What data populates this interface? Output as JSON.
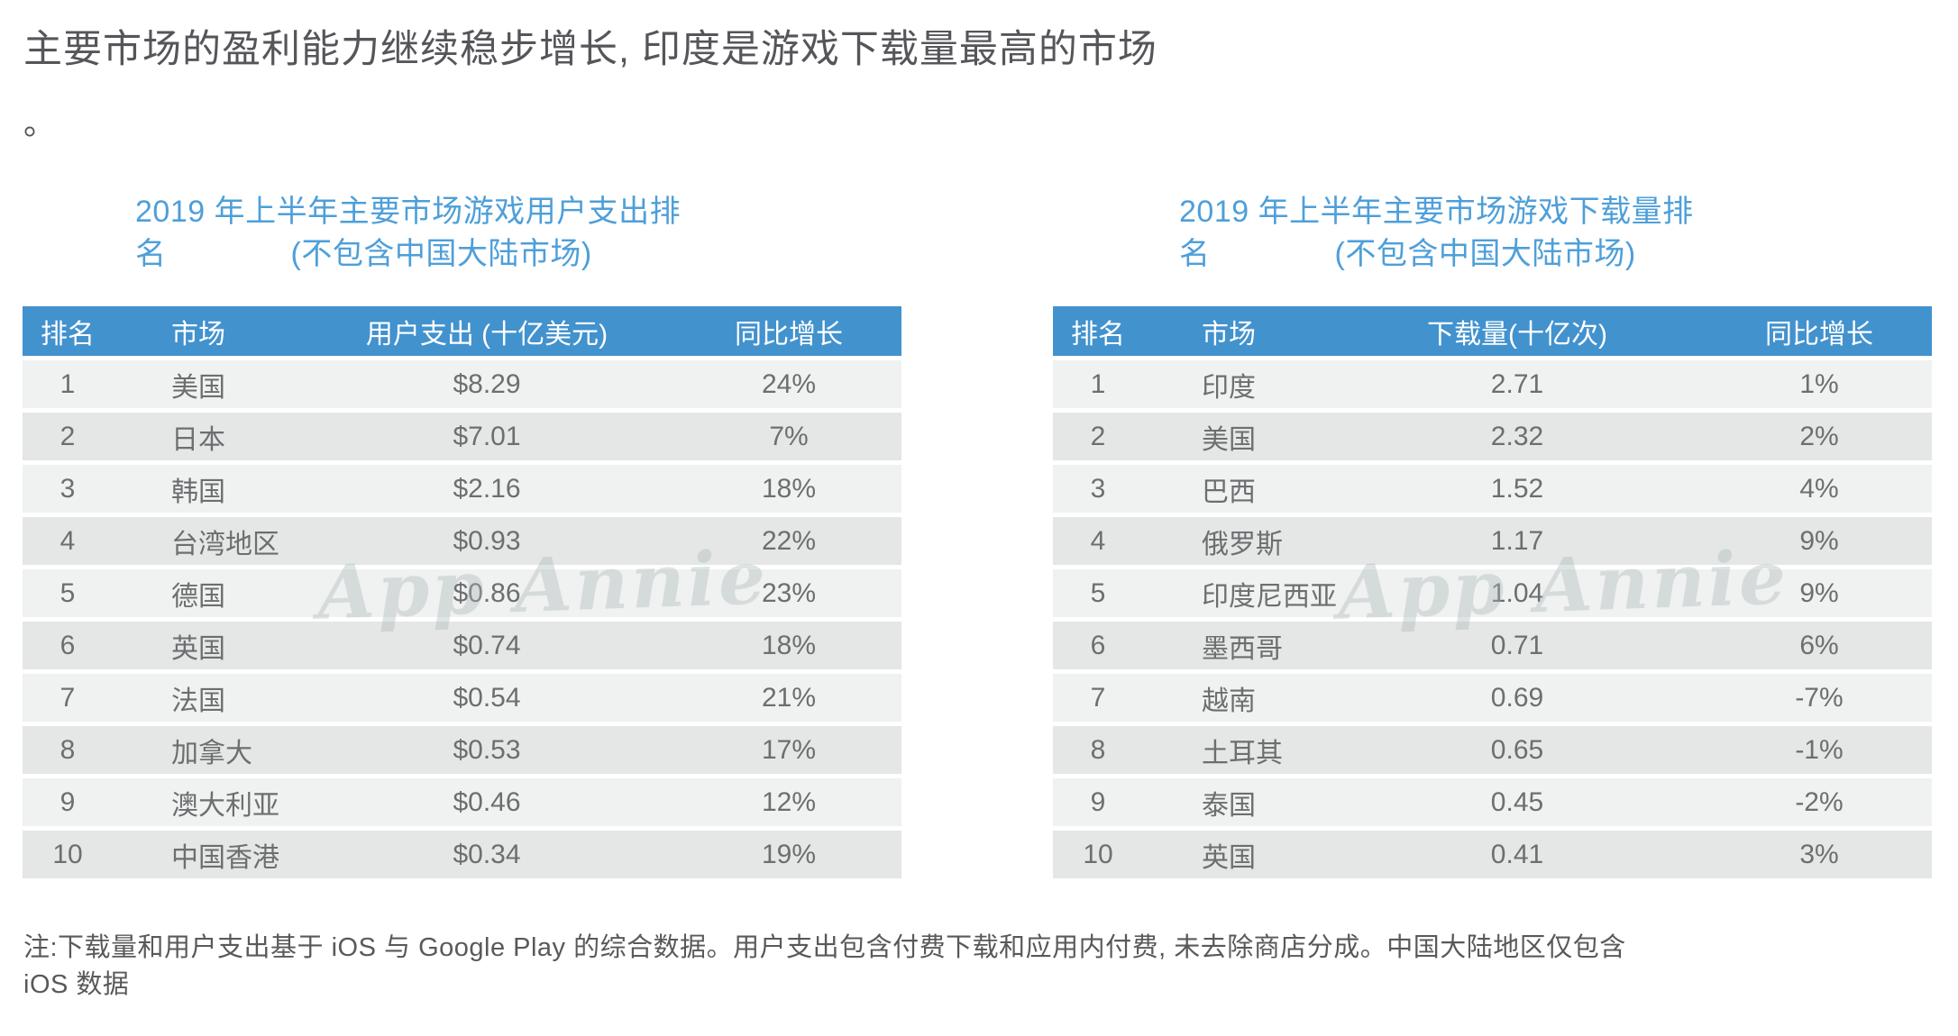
{
  "slide": {
    "title": "主要市场的盈利能力继续稳步增长, 印度是游戏下载量最高的市场",
    "title_overflow": "。",
    "watermark": "App Annie",
    "footnote": "注:下载量和用户支出基于 iOS 与 Google Play 的综合数据。用户支出包含付费下载和应用内付费, 未去除商店分成。中国大陆地区仅包含 iOS 数据"
  },
  "colors": {
    "header_blue": "#4292ce",
    "panel_title_blue": "#4e9fd9",
    "row_light": "#f0f1f1",
    "row_dark": "#e5e6e6",
    "cell_text": "#6d6e70",
    "title_text": "#55565a"
  },
  "panels": [
    {
      "title_line1": "2019 年上半年主要市场游戏用户支出排",
      "title_line2": "名　　　　(不包含中国大陆市场)"
    },
    {
      "title_line1": "2019 年上半年主要市场游戏下载量排",
      "title_line2": "名　　　　(不包含中国大陆市场)"
    }
  ],
  "chart_data": [
    {
      "type": "table",
      "title": "2019 年上半年主要市场游戏用户支出排名 (不包含中国大陆市场)",
      "columns": [
        "排名",
        "市场",
        "用户支出 (十亿美元)",
        "同比增长"
      ],
      "rows": [
        [
          "1",
          "美国",
          "$8.29",
          "24%"
        ],
        [
          "2",
          "日本",
          "$7.01",
          "7%"
        ],
        [
          "3",
          "韩国",
          "$2.16",
          "18%"
        ],
        [
          "4",
          "台湾地区",
          "$0.93",
          "22%"
        ],
        [
          "5",
          "德国",
          "$0.86",
          "23%"
        ],
        [
          "6",
          "英国",
          "$0.74",
          "18%"
        ],
        [
          "7",
          "法国",
          "$0.54",
          "21%"
        ],
        [
          "8",
          "加拿大",
          "$0.53",
          "17%"
        ],
        [
          "9",
          "澳大利亚",
          "$0.46",
          "12%"
        ],
        [
          "10",
          "中国香港",
          "$0.34",
          "19%"
        ]
      ]
    },
    {
      "type": "table",
      "title": "2019 年上半年主要市场游戏下载量排名 (不包含中国大陆市场)",
      "columns": [
        "排名",
        "市场",
        "下载量(十亿次)",
        "同比增长"
      ],
      "rows": [
        [
          "1",
          "印度",
          "2.71",
          "1%"
        ],
        [
          "2",
          "美国",
          "2.32",
          "2%"
        ],
        [
          "3",
          "巴西",
          "1.52",
          "4%"
        ],
        [
          "4",
          "俄罗斯",
          "1.17",
          "9%"
        ],
        [
          "5",
          "印度尼西亚",
          "1.04",
          "9%"
        ],
        [
          "6",
          "墨西哥",
          "0.71",
          "6%"
        ],
        [
          "7",
          "越南",
          "0.69",
          "-7%"
        ],
        [
          "8",
          "土耳其",
          "0.65",
          "-1%"
        ],
        [
          "9",
          "泰国",
          "0.45",
          "-2%"
        ],
        [
          "10",
          "英国",
          "0.41",
          "3%"
        ]
      ]
    }
  ]
}
